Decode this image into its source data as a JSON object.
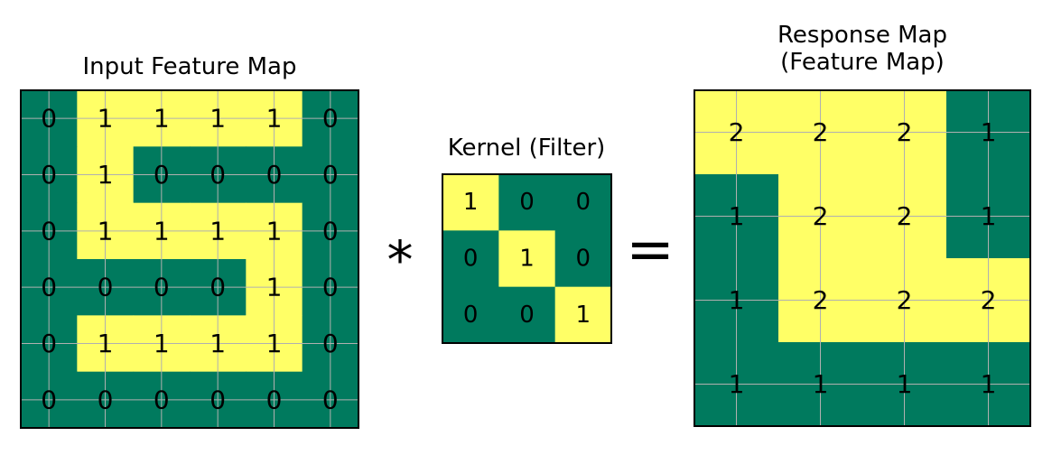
{
  "colors": {
    "high": "#ffff66",
    "low": "#007a5e",
    "grid": "#b0b0b0",
    "border": "#000000"
  },
  "operators": {
    "convolve": "*",
    "equals": "="
  },
  "input": {
    "title_lines": [
      "Input Feature Map"
    ],
    "values": [
      [
        0,
        1,
        1,
        1,
        1,
        0
      ],
      [
        0,
        1,
        0,
        0,
        0,
        0
      ],
      [
        0,
        1,
        1,
        1,
        1,
        0
      ],
      [
        0,
        0,
        0,
        0,
        1,
        0
      ],
      [
        0,
        1,
        1,
        1,
        1,
        0
      ],
      [
        0,
        0,
        0,
        0,
        0,
        0
      ]
    ],
    "highlight": [
      [
        0,
        1,
        1,
        1,
        1,
        0
      ],
      [
        0,
        1,
        0,
        0,
        0,
        0
      ],
      [
        0,
        1,
        1,
        1,
        1,
        0
      ],
      [
        0,
        0,
        0,
        0,
        1,
        0
      ],
      [
        0,
        1,
        1,
        1,
        1,
        0
      ],
      [
        0,
        0,
        0,
        0,
        0,
        0
      ]
    ]
  },
  "kernel": {
    "title_lines": [
      "Kernel (Filter)"
    ],
    "values": [
      [
        1,
        0,
        0
      ],
      [
        0,
        1,
        0
      ],
      [
        0,
        0,
        1
      ]
    ],
    "highlight": [
      [
        1,
        0,
        0
      ],
      [
        0,
        1,
        0
      ],
      [
        0,
        0,
        1
      ]
    ]
  },
  "response": {
    "title_lines": [
      "Response Map",
      "(Feature Map)"
    ],
    "values": [
      [
        2,
        2,
        2,
        1
      ],
      [
        1,
        2,
        2,
        1
      ],
      [
        1,
        2,
        2,
        2
      ],
      [
        1,
        1,
        1,
        1
      ]
    ],
    "highlight": [
      [
        1,
        1,
        1,
        0
      ],
      [
        0,
        1,
        1,
        0
      ],
      [
        0,
        1,
        1,
        1
      ],
      [
        0,
        0,
        0,
        0
      ]
    ]
  }
}
